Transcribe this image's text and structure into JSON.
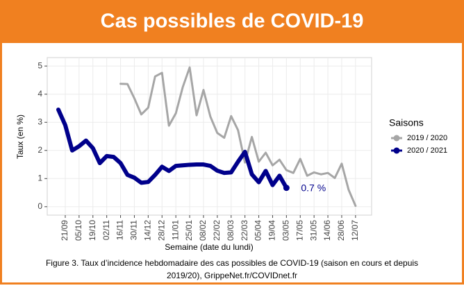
{
  "header": {
    "title": "Cas possibles de COVID-19"
  },
  "chart_data": {
    "type": "line",
    "xlabel": "Semaine (date du lundi)",
    "ylabel": "Taux (en %)",
    "categories": [
      null,
      "21/09",
      null,
      "05/10",
      null,
      "19/10",
      null,
      "02/11",
      null,
      "16/11",
      null,
      "30/11",
      null,
      "14/12",
      null,
      "28/12",
      null,
      "11/01",
      null,
      "25/01",
      null,
      "08/02",
      null,
      "22/02",
      null,
      "08/03",
      null,
      "22/03",
      null,
      "05/04",
      null,
      "19/04",
      null,
      "03/05",
      null,
      "17/05",
      null,
      "31/05",
      null,
      "14/06",
      null,
      "28/06",
      null,
      "12/07"
    ],
    "series": [
      {
        "name": "2019 / 2020",
        "color": "#a6a6a6",
        "values": [
          null,
          null,
          null,
          null,
          null,
          null,
          null,
          null,
          null,
          4.37,
          4.36,
          3.85,
          3.28,
          3.52,
          4.63,
          4.76,
          2.88,
          3.32,
          4.25,
          4.95,
          3.25,
          4.15,
          3.2,
          2.62,
          2.45,
          3.22,
          2.72,
          1.57,
          2.48,
          1.6,
          1.92,
          1.47,
          1.67,
          1.3,
          1.2,
          1.7,
          1.1,
          1.22,
          1.15,
          1.2,
          1.02,
          1.53,
          0.6,
          0.03
        ]
      },
      {
        "name": "2020 / 2021",
        "color": "#00008b",
        "values": [
          3.45,
          2.9,
          2.0,
          2.15,
          2.35,
          2.08,
          1.55,
          1.8,
          1.77,
          1.55,
          1.13,
          1.03,
          0.85,
          0.88,
          1.13,
          1.42,
          1.27,
          1.45,
          1.47,
          1.49,
          1.5,
          1.5,
          1.45,
          1.28,
          1.2,
          1.22,
          1.6,
          1.95,
          1.15,
          0.87,
          1.27,
          0.77,
          1.1,
          0.67,
          null,
          null,
          null,
          null,
          null,
          null,
          null,
          null,
          null,
          null
        ]
      }
    ],
    "annotation": "0.7 %",
    "legend_title": "Saisons",
    "ylim": [
      -0.3,
      5.3
    ],
    "yticks": [
      0,
      1,
      2,
      3,
      4,
      5
    ],
    "grid": true,
    "caption": [
      "Figure 3. Taux d’incidence hebdomadaire des cas possibles de COVID-19 (saison en cours et depuis",
      "2019/20), GrippeNet.fr/COVIDnet.fr"
    ]
  }
}
